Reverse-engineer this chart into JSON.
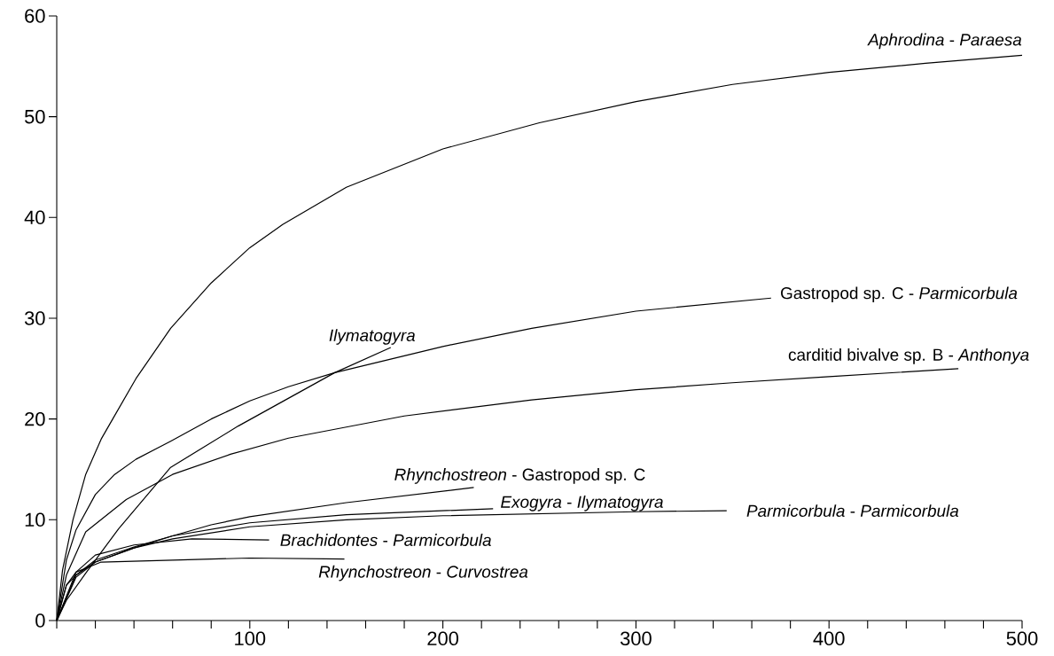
{
  "chart_data": {
    "type": "line",
    "xlim": [
      0,
      500
    ],
    "ylim": [
      0,
      60
    ],
    "xticks": [
      {
        "value": 0,
        "label": null
      },
      {
        "value": 20,
        "label": null
      },
      {
        "value": 40,
        "label": null
      },
      {
        "value": 60,
        "label": null
      },
      {
        "value": 80,
        "label": null
      },
      100,
      {
        "value": 120,
        "label": null
      },
      {
        "value": 140,
        "label": null
      },
      {
        "value": 160,
        "label": null
      },
      {
        "value": 180,
        "label": null
      },
      200,
      {
        "value": 220,
        "label": null
      },
      {
        "value": 240,
        "label": null
      },
      {
        "value": 260,
        "label": null
      },
      {
        "value": 280,
        "label": null
      },
      300,
      {
        "value": 320,
        "label": null
      },
      {
        "value": 340,
        "label": null
      },
      {
        "value": 360,
        "label": null
      },
      {
        "value": 380,
        "label": null
      },
      400,
      {
        "value": 420,
        "label": null
      },
      {
        "value": 440,
        "label": null
      },
      {
        "value": 460,
        "label": null
      },
      {
        "value": 480,
        "label": null
      },
      500
    ],
    "yticks": [
      0,
      10,
      20,
      30,
      40,
      50,
      60
    ],
    "grid": false,
    "legend": false,
    "line_style": "solid",
    "series": [
      {
        "name": "*Aphrodina* - *Paraesa*",
        "color": "#000000",
        "x": [
          0,
          3,
          8.4,
          15,
          23,
          29,
          41,
          59,
          80,
          100,
          117,
          150,
          200,
          250,
          300,
          350,
          400,
          450,
          500
        ],
        "values": [
          0,
          5,
          10,
          14.5,
          18,
          20,
          24,
          29,
          33.5,
          37,
          39.3,
          43,
          46.8,
          49.4,
          51.5,
          53.2,
          54.4,
          55.3,
          56.1
        ]
      },
      {
        "name": "Gastropod sp. C - *Parmicorbula*",
        "color": "#000000",
        "x": [
          0,
          5,
          10,
          20,
          30,
          41,
          59,
          80,
          100,
          120,
          144,
          200,
          246,
          300,
          370
        ],
        "values": [
          0,
          6,
          9,
          12.5,
          14.5,
          16,
          17.8,
          20,
          21.8,
          23.2,
          24.6,
          27.2,
          29,
          30.7,
          32
        ]
      },
      {
        "name": "*Ilymatogyra*",
        "color": "#000000",
        "x": [
          0,
          5,
          15,
          32,
          59,
          94,
          144,
          173
        ],
        "values": [
          0,
          2,
          4.7,
          9.1,
          15.2,
          19.3,
          24.6,
          27.1
        ]
      },
      {
        "name": "carditid bivalve sp. B - *Anthonya*",
        "color": "#000000",
        "x": [
          0,
          5,
          15,
          36,
          60,
          90,
          120,
          180,
          246,
          300,
          350,
          400,
          467
        ],
        "values": [
          0,
          4.5,
          8.8,
          12,
          14.5,
          16.5,
          18.1,
          20.3,
          21.9,
          22.9,
          23.6,
          24.2,
          25
        ]
      },
      {
        "name": "*Rhynchostreon* - Gastropod sp. C",
        "color": "#000000",
        "x": [
          0,
          5,
          10,
          20,
          40,
          60,
          80,
          100,
          150,
          216
        ],
        "values": [
          0,
          3.5,
          4.5,
          5.8,
          7.2,
          8.4,
          9.5,
          10.3,
          11.7,
          13.2
        ]
      },
      {
        "name": "*Exogyra* - *Ilymatogyra*",
        "color": "#000000",
        "x": [
          0,
          10,
          20,
          40,
          60,
          100,
          150,
          226
        ],
        "values": [
          0,
          4.5,
          6,
          7.3,
          8.4,
          9.7,
          10.5,
          11.1
        ]
      },
      {
        "name": "*Parmicorbula* - *Parmicorbula*",
        "color": "#000000",
        "x": [
          0,
          10,
          20,
          40,
          60,
          100,
          150,
          200,
          250,
          300,
          347
        ],
        "values": [
          0,
          4.3,
          5.8,
          7.2,
          8.1,
          9.3,
          10,
          10.4,
          10.6,
          10.8,
          10.9
        ]
      },
      {
        "name": "*Brachidontes* - *Parmicorbula*",
        "color": "#000000",
        "x": [
          0,
          10,
          20,
          40,
          70,
          110
        ],
        "values": [
          0,
          4.8,
          6.5,
          7.5,
          8.1,
          8
        ]
      },
      {
        "name": "*Rhynchostreon* - *Curvostrea*",
        "color": "#000000",
        "x": [
          0,
          5,
          10,
          23,
          60,
          100,
          149
        ],
        "values": [
          0,
          3.5,
          4.8,
          5.8,
          6,
          6.2,
          6.1
        ]
      }
    ]
  }
}
